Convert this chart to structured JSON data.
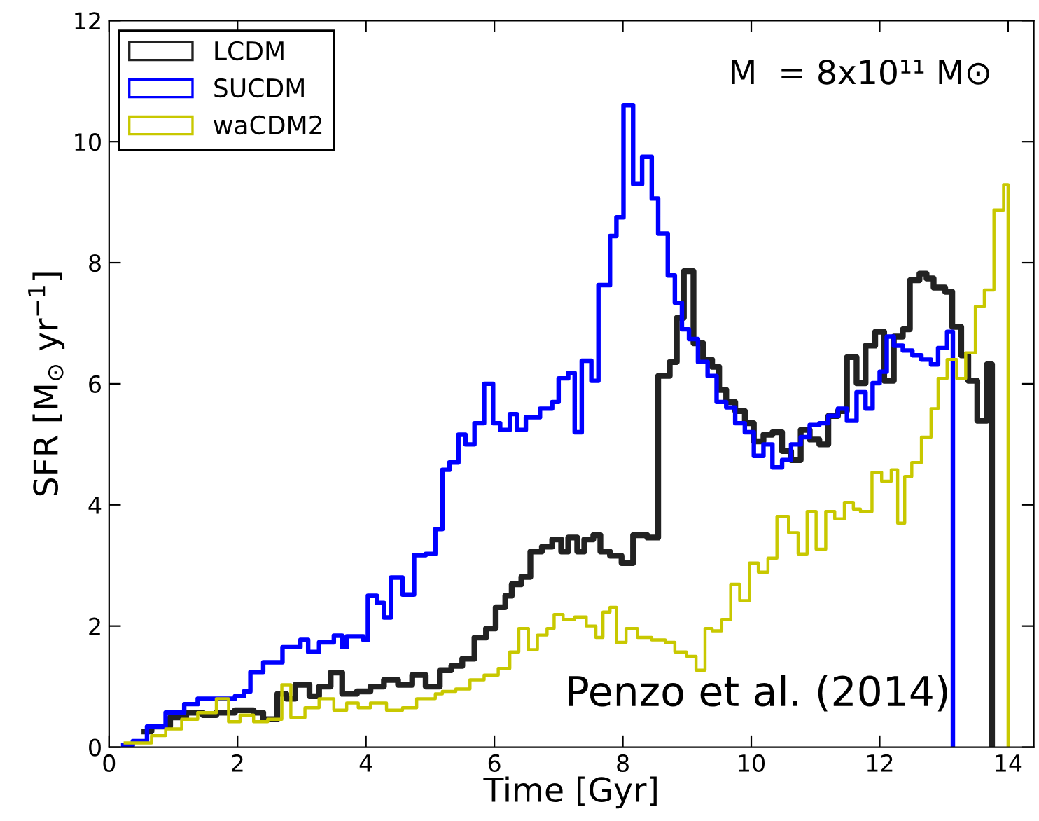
{
  "chart_data": {
    "type": "step",
    "xlabel": "Time [Gyr]",
    "ylabel": "SFR [M$_{⊙}$ yr$^{−1}$]",
    "xlim": [
      0,
      14.4
    ],
    "ylim": [
      0,
      12
    ],
    "xticks": [
      0,
      2,
      4,
      6,
      8,
      10,
      12,
      14
    ],
    "yticks": [
      0,
      2,
      4,
      6,
      8,
      10,
      12
    ],
    "grid": false,
    "legend": "top left",
    "annotations": [
      "M  = 8x10¹¹ M⊙",
      "Penzo et al. (2014)"
    ],
    "series": [
      {
        "name": "LCDM",
        "color": "#222222",
        "x": [
          0.55,
          0.66,
          0.95,
          1.2,
          1.46,
          1.67,
          1.96,
          2.25,
          2.4,
          2.62,
          2.76,
          2.9,
          3.12,
          3.27,
          3.45,
          3.63,
          3.86,
          4.07,
          4.28,
          4.5,
          4.72,
          4.93,
          5.15,
          5.33,
          5.5,
          5.69,
          5.87,
          6.02,
          6.17,
          6.27,
          6.42,
          6.56,
          6.74,
          6.9,
          7.04,
          7.15,
          7.29,
          7.4,
          7.54,
          7.65,
          7.8,
          7.98,
          8.16,
          8.38,
          8.55,
          8.73,
          8.84,
          8.95,
          9.1,
          9.25,
          9.39,
          9.5,
          9.61,
          9.75,
          9.9,
          10.04,
          10.19,
          10.33,
          10.48,
          10.62,
          10.77,
          10.91,
          11.06,
          11.2,
          11.35,
          11.49,
          11.64,
          11.78,
          11.93,
          12.07,
          12.22,
          12.36,
          12.47,
          12.62,
          12.73,
          12.84,
          13.02,
          13.13,
          13.27,
          13.38,
          13.52,
          13.67,
          13.75
        ],
        "values": [
          0.26,
          0.34,
          0.49,
          0.57,
          0.53,
          0.57,
          0.61,
          0.57,
          0.46,
          0.88,
          0.8,
          1.03,
          0.84,
          1.0,
          1.23,
          0.88,
          0.92,
          1.0,
          1.11,
          1.03,
          1.19,
          1.0,
          1.27,
          1.34,
          1.46,
          1.81,
          1.96,
          2.31,
          2.5,
          2.69,
          2.81,
          3.23,
          3.31,
          3.43,
          3.23,
          3.46,
          3.23,
          3.43,
          3.5,
          3.23,
          3.16,
          3.04,
          3.5,
          3.46,
          6.13,
          6.36,
          7.09,
          7.86,
          6.67,
          6.4,
          6.28,
          5.9,
          5.7,
          5.55,
          5.35,
          5.05,
          5.16,
          5.2,
          4.89,
          4.74,
          5.24,
          5.08,
          5.0,
          5.47,
          5.55,
          6.44,
          6.01,
          6.63,
          6.86,
          6.05,
          6.78,
          6.9,
          7.71,
          7.82,
          7.74,
          7.59,
          7.52,
          6.94,
          6.47,
          6.05,
          5.39,
          6.32,
          0
        ]
      },
      {
        "name": "SUCDM",
        "color": "#0000ff",
        "x": [
          0.22,
          0.37,
          0.59,
          0.88,
          1.17,
          1.38,
          1.67,
          1.96,
          2.1,
          2.2,
          2.4,
          2.7,
          2.98,
          3.1,
          3.27,
          3.5,
          3.63,
          3.7,
          3.96,
          4.03,
          4.17,
          4.28,
          4.39,
          4.57,
          4.75,
          4.93,
          5.08,
          5.19,
          5.3,
          5.44,
          5.55,
          5.69,
          5.84,
          5.98,
          6.09,
          6.24,
          6.35,
          6.49,
          6.71,
          6.9,
          7.0,
          7.15,
          7.25,
          7.36,
          7.51,
          7.62,
          7.8,
          7.9,
          8.01,
          8.16,
          8.3,
          8.45,
          8.55,
          8.7,
          8.81,
          8.92,
          9.03,
          9.17,
          9.32,
          9.46,
          9.61,
          9.75,
          9.9,
          10.04,
          10.19,
          10.33,
          10.48,
          10.62,
          10.77,
          10.91,
          11.06,
          11.2,
          11.35,
          11.49,
          11.64,
          11.78,
          11.89,
          12.0,
          12.11,
          12.22,
          12.36,
          12.51,
          12.65,
          12.8,
          12.91,
          13.05,
          13.14
        ],
        "values": [
          0.03,
          0.1,
          0.34,
          0.57,
          0.71,
          0.8,
          0.8,
          0.84,
          0.92,
          1.24,
          1.4,
          1.65,
          1.77,
          1.57,
          1.73,
          1.84,
          1.65,
          1.83,
          1.77,
          2.5,
          2.38,
          2.14,
          2.8,
          2.52,
          3.17,
          3.19,
          3.6,
          4.58,
          4.7,
          5.16,
          5.0,
          5.35,
          6.0,
          5.35,
          5.24,
          5.5,
          5.24,
          5.45,
          5.59,
          5.7,
          6.09,
          6.18,
          5.2,
          6.38,
          6.05,
          7.63,
          8.44,
          8.75,
          10.6,
          9.3,
          9.75,
          9.06,
          8.48,
          7.79,
          7.34,
          6.9,
          6.74,
          6.36,
          6.13,
          5.7,
          5.61,
          5.35,
          5.2,
          4.81,
          5.0,
          4.62,
          4.74,
          5.0,
          5.12,
          5.32,
          5.35,
          5.47,
          5.59,
          5.39,
          5.86,
          5.59,
          6.01,
          6.2,
          6.78,
          6.63,
          6.55,
          6.47,
          6.4,
          6.32,
          6.59,
          6.86,
          0
        ]
      },
      {
        "name": "waCDM2",
        "color": "#c8c800",
        "x": [
          0.25,
          0.66,
          0.88,
          1.13,
          1.38,
          1.67,
          1.86,
          2.04,
          2.25,
          2.47,
          2.69,
          2.83,
          3.05,
          3.27,
          3.5,
          3.7,
          3.88,
          4.07,
          4.32,
          4.57,
          4.79,
          5.08,
          5.19,
          5.4,
          5.62,
          5.84,
          6.06,
          6.24,
          6.38,
          6.53,
          6.67,
          6.82,
          6.93,
          7.07,
          7.25,
          7.43,
          7.58,
          7.69,
          7.8,
          7.9,
          8.05,
          8.23,
          8.45,
          8.66,
          8.81,
          8.99,
          9.14,
          9.28,
          9.39,
          9.54,
          9.68,
          9.82,
          9.97,
          10.11,
          10.26,
          10.4,
          10.58,
          10.73,
          10.87,
          11.01,
          11.16,
          11.3,
          11.45,
          11.59,
          11.7,
          11.88,
          12.03,
          12.18,
          12.28,
          12.39,
          12.5,
          12.65,
          12.8,
          12.91,
          13.05,
          13.2,
          13.34,
          13.49,
          13.63,
          13.78,
          13.93,
          14.0
        ],
        "values": [
          0.07,
          0.19,
          0.3,
          0.46,
          0.57,
          0.8,
          0.42,
          0.53,
          0.42,
          0.46,
          1.03,
          0.49,
          0.65,
          0.8,
          0.61,
          0.73,
          0.65,
          0.73,
          0.61,
          0.65,
          0.8,
          0.88,
          0.92,
          0.96,
          1.11,
          1.19,
          1.3,
          1.57,
          1.96,
          1.61,
          1.85,
          1.96,
          2.19,
          2.11,
          2.15,
          2.0,
          1.81,
          2.23,
          2.31,
          1.73,
          1.96,
          1.81,
          1.77,
          1.73,
          1.57,
          1.5,
          1.27,
          1.96,
          1.92,
          2.11,
          2.69,
          2.42,
          3.04,
          2.89,
          3.12,
          3.81,
          3.54,
          3.19,
          3.89,
          3.27,
          3.89,
          3.77,
          4.04,
          3.93,
          3.89,
          4.54,
          4.39,
          4.58,
          3.7,
          4.47,
          4.7,
          5.12,
          5.59,
          6.09,
          6.4,
          6.09,
          6.51,
          7.28,
          7.55,
          8.87,
          9.29,
          0
        ]
      }
    ]
  }
}
